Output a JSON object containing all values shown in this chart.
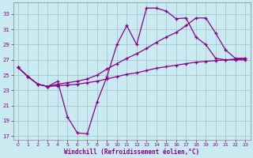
{
  "xlabel": "Windchill (Refroidissement éolien,°C)",
  "xlim": [
    -0.5,
    23.5
  ],
  "ylim": [
    16.5,
    34.5
  ],
  "yticks": [
    17,
    19,
    21,
    23,
    25,
    27,
    29,
    31,
    33
  ],
  "xticks": [
    0,
    1,
    2,
    3,
    4,
    5,
    6,
    7,
    8,
    9,
    10,
    11,
    12,
    13,
    14,
    15,
    16,
    17,
    18,
    19,
    20,
    21,
    22,
    23
  ],
  "bg_color": "#c8eaf0",
  "grid_color": "#a0bfc8",
  "line_color": "#880088",
  "line1_x": [
    0,
    1,
    2,
    3,
    4,
    5,
    6,
    7,
    8,
    9,
    10,
    11,
    12,
    13,
    14,
    15,
    16,
    17,
    18,
    19,
    20,
    21,
    22,
    23
  ],
  "line1_y": [
    26.0,
    24.8,
    23.8,
    23.5,
    24.2,
    19.5,
    17.4,
    17.3,
    21.5,
    24.8,
    29.0,
    31.5,
    29.0,
    33.8,
    33.8,
    33.4,
    32.4,
    32.5,
    30.0,
    29.0,
    27.2,
    27.0,
    27.0,
    27.0
  ],
  "line2_x": [
    0,
    1,
    2,
    3,
    4,
    5,
    6,
    7,
    8,
    9,
    10,
    11,
    12,
    13,
    14,
    15,
    16,
    17,
    18,
    19,
    20,
    21,
    22,
    23
  ],
  "line2_y": [
    26.0,
    24.8,
    23.8,
    23.5,
    23.6,
    23.7,
    23.8,
    24.0,
    24.2,
    24.5,
    24.8,
    25.1,
    25.3,
    25.6,
    25.9,
    26.1,
    26.3,
    26.5,
    26.7,
    26.8,
    26.9,
    27.0,
    27.1,
    27.2
  ],
  "line3_x": [
    0,
    1,
    2,
    3,
    4,
    5,
    6,
    7,
    8,
    9,
    10,
    11,
    12,
    13,
    14,
    15,
    16,
    17,
    18,
    19,
    20,
    21,
    22,
    23
  ],
  "line3_y": [
    26.0,
    24.8,
    23.8,
    23.5,
    23.8,
    24.0,
    24.2,
    24.5,
    25.0,
    25.8,
    26.5,
    27.2,
    27.8,
    28.5,
    29.3,
    30.0,
    30.6,
    31.5,
    32.5,
    32.5,
    30.5,
    28.3,
    27.2,
    27.2
  ]
}
